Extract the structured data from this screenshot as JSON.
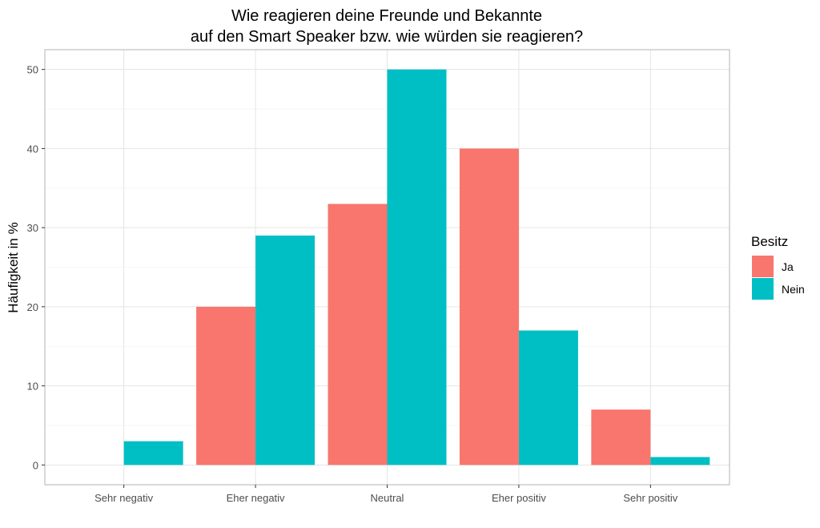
{
  "chart_data": {
    "type": "bar",
    "title_line1": "Wie reagieren deine Freunde und Bekannte",
    "title_line2": "auf den Smart Speaker bzw. wie würden sie reagieren?",
    "xlabel": "",
    "ylabel": "Häufigkeit in %",
    "categories": [
      "Sehr negativ",
      "Eher negativ",
      "Neutral",
      "Eher positiv",
      "Sehr positiv"
    ],
    "series": [
      {
        "name": "Ja",
        "color": "#F8766D",
        "values": [
          0,
          20,
          33,
          40,
          7
        ]
      },
      {
        "name": "Nein",
        "color": "#00BFC4",
        "values": [
          3,
          29,
          50,
          17,
          1
        ]
      }
    ],
    "ylim": [
      -2.5,
      52.5
    ],
    "yticks": [
      0,
      10,
      20,
      30,
      40,
      50
    ],
    "legend": {
      "title": "Besitz",
      "position": "right"
    },
    "grid": true
  }
}
